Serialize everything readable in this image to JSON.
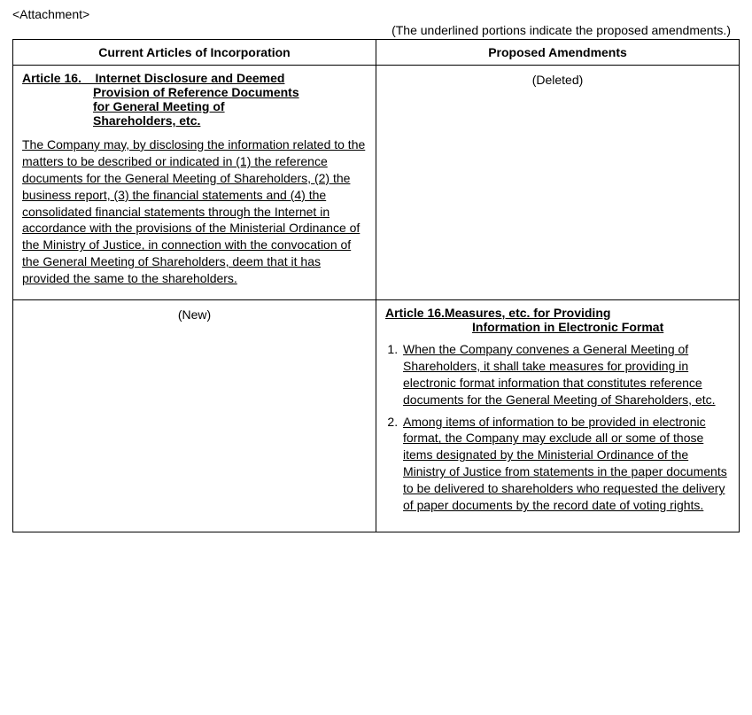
{
  "header": {
    "attachment_label": "<Attachment>",
    "note": "(The underlined portions indicate the proposed amendments.)"
  },
  "table": {
    "col1_header": "Current Articles of Incorporation",
    "col2_header": "Proposed Amendments",
    "row1": {
      "left": {
        "article_num": "Article 16.",
        "title_line1": "Internet Disclosure and Deemed",
        "title_line2": "Provision of Reference Documents",
        "title_line3": "for General Meeting of",
        "title_line4": "Shareholders, etc.",
        "body": "The Company may, by disclosing the information related to the matters to be described or indicated in (1) the reference documents for the General Meeting of Shareholders, (2) the business report, (3) the financial statements and (4) the consolidated financial statements through the Internet in accordance with the provisions of the Ministerial Ordinance of the Ministry of Justice, in connection with the convocation of the General Meeting of Shareholders, deem that it has provided the same to the shareholders."
      },
      "right_status": "(Deleted)"
    },
    "row2": {
      "left_status": "(New)",
      "right": {
        "title_line1": "Article 16.Measures, etc. for Providing",
        "title_line2": "Information in Electronic Format",
        "item1": "When the Company convenes a General Meeting of Shareholders, it shall take measures for providing in electronic format information that constitutes reference documents for the General Meeting of Shareholders, etc.",
        "item2": "Among items of information to be provided in electronic format, the Company may exclude all or some of those items designated by the Ministerial Ordinance of the Ministry of Justice from statements in the paper documents to be delivered to shareholders who requested the delivery of paper documents by the record date of voting rights."
      }
    }
  }
}
